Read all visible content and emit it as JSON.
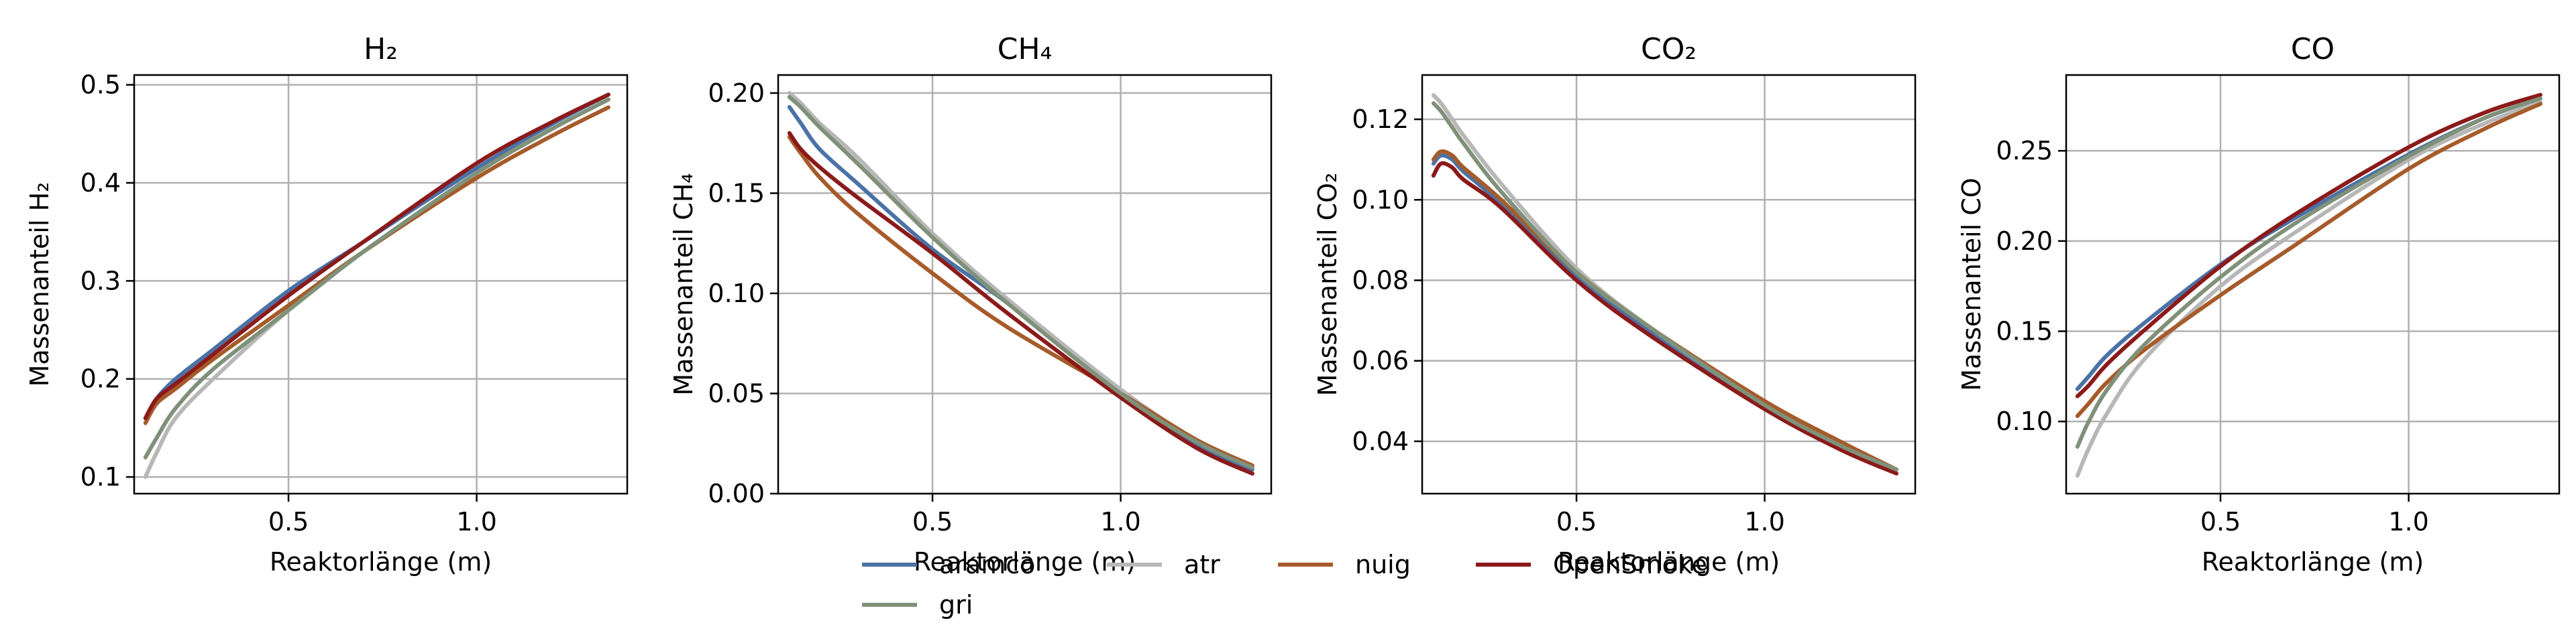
{
  "colors": {
    "aramco": "#4a72a6",
    "atr": "#b7b7b7",
    "nuig": "#a65b2a",
    "OpenSmoke": "#8b1a1a",
    "gri": "#7f9179",
    "grid": "#b0b0b0",
    "axes": "#000000"
  },
  "legend": {
    "placement": "bottom-center",
    "entries": [
      "aramco",
      "atr",
      "nuig",
      "OpenSmoke",
      "gri"
    ]
  },
  "chart_data": [
    {
      "type": "line",
      "title": "H₂",
      "xlabel": "Reaktorlänge (m)",
      "ylabel": "Massenanteil H₂",
      "xlim": [
        0.09,
        1.4
      ],
      "ylim": [
        0.083,
        0.51
      ],
      "xticks": [
        0.5,
        1.0
      ],
      "xtick_labels": [
        "0.5",
        "1.0"
      ],
      "yticks": [
        0.1,
        0.2,
        0.3,
        0.4,
        0.5
      ],
      "ytick_labels": [
        "0.1",
        "0.2",
        "0.3",
        "0.4",
        "0.5"
      ],
      "grid": true,
      "series": [
        {
          "name": "aramco",
          "x": [
            0.12,
            0.15,
            0.2,
            0.3,
            0.5,
            0.7,
            1.0,
            1.2,
            1.35
          ],
          "y": [
            0.16,
            0.18,
            0.2,
            0.23,
            0.29,
            0.34,
            0.415,
            0.46,
            0.49
          ]
        },
        {
          "name": "atr",
          "x": [
            0.12,
            0.15,
            0.2,
            0.3,
            0.5,
            0.7,
            1.0,
            1.2,
            1.35
          ],
          "y": [
            0.1,
            0.125,
            0.16,
            0.2,
            0.27,
            0.33,
            0.41,
            0.455,
            0.485
          ]
        },
        {
          "name": "nuig",
          "x": [
            0.12,
            0.15,
            0.2,
            0.3,
            0.5,
            0.7,
            1.0,
            1.2,
            1.35
          ],
          "y": [
            0.155,
            0.175,
            0.19,
            0.22,
            0.275,
            0.33,
            0.405,
            0.448,
            0.477
          ]
        },
        {
          "name": "OpenSmoke",
          "x": [
            0.12,
            0.15,
            0.2,
            0.3,
            0.5,
            0.7,
            1.0,
            1.2,
            1.35
          ],
          "y": [
            0.16,
            0.18,
            0.195,
            0.225,
            0.285,
            0.34,
            0.42,
            0.462,
            0.49
          ]
        },
        {
          "name": "gri",
          "x": [
            0.12,
            0.15,
            0.2,
            0.3,
            0.5,
            0.7,
            1.0,
            1.2,
            1.35
          ],
          "y": [
            0.12,
            0.14,
            0.17,
            0.21,
            0.27,
            0.33,
            0.41,
            0.455,
            0.485
          ]
        }
      ]
    },
    {
      "type": "line",
      "title": "CH₄",
      "xlabel": "Reaktorlänge (m)",
      "ylabel": "Massenanteil CH₄",
      "xlim": [
        0.09,
        1.4
      ],
      "ylim": [
        0.0,
        0.209
      ],
      "xticks": [
        0.5,
        1.0
      ],
      "xtick_labels": [
        "0.5",
        "1.0"
      ],
      "yticks": [
        0.0,
        0.05,
        0.1,
        0.15,
        0.2
      ],
      "ytick_labels": [
        "0.00",
        "0.05",
        "0.10",
        "0.15",
        "0.20"
      ],
      "grid": true,
      "series": [
        {
          "name": "aramco",
          "x": [
            0.12,
            0.15,
            0.2,
            0.3,
            0.5,
            0.7,
            1.0,
            1.2,
            1.35
          ],
          "y": [
            0.193,
            0.185,
            0.172,
            0.155,
            0.122,
            0.095,
            0.05,
            0.025,
            0.012
          ]
        },
        {
          "name": "atr",
          "x": [
            0.12,
            0.15,
            0.2,
            0.3,
            0.5,
            0.7,
            1.0,
            1.2,
            1.35
          ],
          "y": [
            0.2,
            0.195,
            0.185,
            0.168,
            0.13,
            0.097,
            0.052,
            0.027,
            0.014
          ]
        },
        {
          "name": "nuig",
          "x": [
            0.12,
            0.15,
            0.2,
            0.3,
            0.5,
            0.7,
            1.0,
            1.2,
            1.35
          ],
          "y": [
            0.178,
            0.17,
            0.158,
            0.14,
            0.11,
            0.083,
            0.05,
            0.027,
            0.014
          ]
        },
        {
          "name": "OpenSmoke",
          "x": [
            0.12,
            0.15,
            0.2,
            0.3,
            0.5,
            0.7,
            1.0,
            1.2,
            1.35
          ],
          "y": [
            0.18,
            0.172,
            0.163,
            0.148,
            0.12,
            0.09,
            0.048,
            0.023,
            0.01
          ]
        },
        {
          "name": "gri",
          "x": [
            0.12,
            0.15,
            0.2,
            0.3,
            0.5,
            0.7,
            1.0,
            1.2,
            1.35
          ],
          "y": [
            0.198,
            0.193,
            0.183,
            0.165,
            0.128,
            0.095,
            0.05,
            0.026,
            0.013
          ]
        }
      ]
    },
    {
      "type": "line",
      "title": "CO₂",
      "xlabel": "Reaktorlänge (m)",
      "ylabel": "Massenanteil CO₂",
      "xlim": [
        0.09,
        1.4
      ],
      "ylim": [
        0.027,
        0.131
      ],
      "xticks": [
        0.5,
        1.0
      ],
      "xtick_labels": [
        "0.5",
        "1.0"
      ],
      "yticks": [
        0.04,
        0.06,
        0.08,
        0.1,
        0.12
      ],
      "ytick_labels": [
        "0.04",
        "0.06",
        "0.08",
        "0.10",
        "0.12"
      ],
      "grid": true,
      "series": [
        {
          "name": "aramco",
          "x": [
            0.12,
            0.14,
            0.17,
            0.2,
            0.3,
            0.5,
            0.7,
            1.0,
            1.2,
            1.35
          ],
          "y": [
            0.109,
            0.111,
            0.11,
            0.107,
            0.099,
            0.081,
            0.067,
            0.049,
            0.039,
            0.033
          ]
        },
        {
          "name": "atr",
          "x": [
            0.12,
            0.14,
            0.17,
            0.2,
            0.3,
            0.5,
            0.7,
            1.0,
            1.2,
            1.35
          ],
          "y": [
            0.126,
            0.124,
            0.12,
            0.116,
            0.104,
            0.083,
            0.068,
            0.049,
            0.039,
            0.033
          ]
        },
        {
          "name": "nuig",
          "x": [
            0.12,
            0.14,
            0.17,
            0.2,
            0.3,
            0.5,
            0.7,
            1.0,
            1.2,
            1.35
          ],
          "y": [
            0.11,
            0.112,
            0.111,
            0.108,
            0.1,
            0.082,
            0.068,
            0.05,
            0.04,
            0.033
          ]
        },
        {
          "name": "OpenSmoke",
          "x": [
            0.12,
            0.14,
            0.17,
            0.2,
            0.3,
            0.5,
            0.7,
            1.0,
            1.2,
            1.35
          ],
          "y": [
            0.106,
            0.109,
            0.108,
            0.105,
            0.098,
            0.08,
            0.066,
            0.048,
            0.038,
            0.032
          ]
        },
        {
          "name": "gri",
          "x": [
            0.12,
            0.14,
            0.17,
            0.2,
            0.3,
            0.5,
            0.7,
            1.0,
            1.2,
            1.35
          ],
          "y": [
            0.124,
            0.122,
            0.118,
            0.114,
            0.102,
            0.082,
            0.068,
            0.049,
            0.039,
            0.033
          ]
        }
      ]
    },
    {
      "type": "line",
      "title": "CO",
      "xlabel": "Reaktorlänge (m)",
      "ylabel": "Massenanteil CO",
      "xlim": [
        0.09,
        1.4
      ],
      "ylim": [
        0.06,
        0.292
      ],
      "xticks": [
        0.5,
        1.0
      ],
      "xtick_labels": [
        "0.5",
        "1.0"
      ],
      "yticks": [
        0.1,
        0.15,
        0.2,
        0.25
      ],
      "ytick_labels": [
        "0.10",
        "0.15",
        "0.20",
        "0.25"
      ],
      "grid": true,
      "series": [
        {
          "name": "aramco",
          "x": [
            0.12,
            0.15,
            0.2,
            0.3,
            0.5,
            0.7,
            1.0,
            1.2,
            1.35
          ],
          "y": [
            0.118,
            0.125,
            0.137,
            0.155,
            0.187,
            0.213,
            0.248,
            0.268,
            0.279
          ]
        },
        {
          "name": "atr",
          "x": [
            0.12,
            0.15,
            0.2,
            0.3,
            0.5,
            0.7,
            1.0,
            1.2,
            1.35
          ],
          "y": [
            0.07,
            0.085,
            0.105,
            0.135,
            0.175,
            0.205,
            0.245,
            0.265,
            0.277
          ]
        },
        {
          "name": "nuig",
          "x": [
            0.12,
            0.15,
            0.2,
            0.3,
            0.5,
            0.7,
            1.0,
            1.2,
            1.35
          ],
          "y": [
            0.103,
            0.11,
            0.122,
            0.14,
            0.17,
            0.198,
            0.24,
            0.262,
            0.276
          ]
        },
        {
          "name": "OpenSmoke",
          "x": [
            0.12,
            0.15,
            0.2,
            0.3,
            0.5,
            0.7,
            1.0,
            1.2,
            1.35
          ],
          "y": [
            0.114,
            0.12,
            0.132,
            0.151,
            0.186,
            0.215,
            0.252,
            0.271,
            0.281
          ]
        },
        {
          "name": "gri",
          "x": [
            0.12,
            0.15,
            0.2,
            0.3,
            0.5,
            0.7,
            1.0,
            1.2,
            1.35
          ],
          "y": [
            0.086,
            0.1,
            0.118,
            0.143,
            0.18,
            0.21,
            0.247,
            0.268,
            0.279
          ]
        }
      ]
    }
  ]
}
